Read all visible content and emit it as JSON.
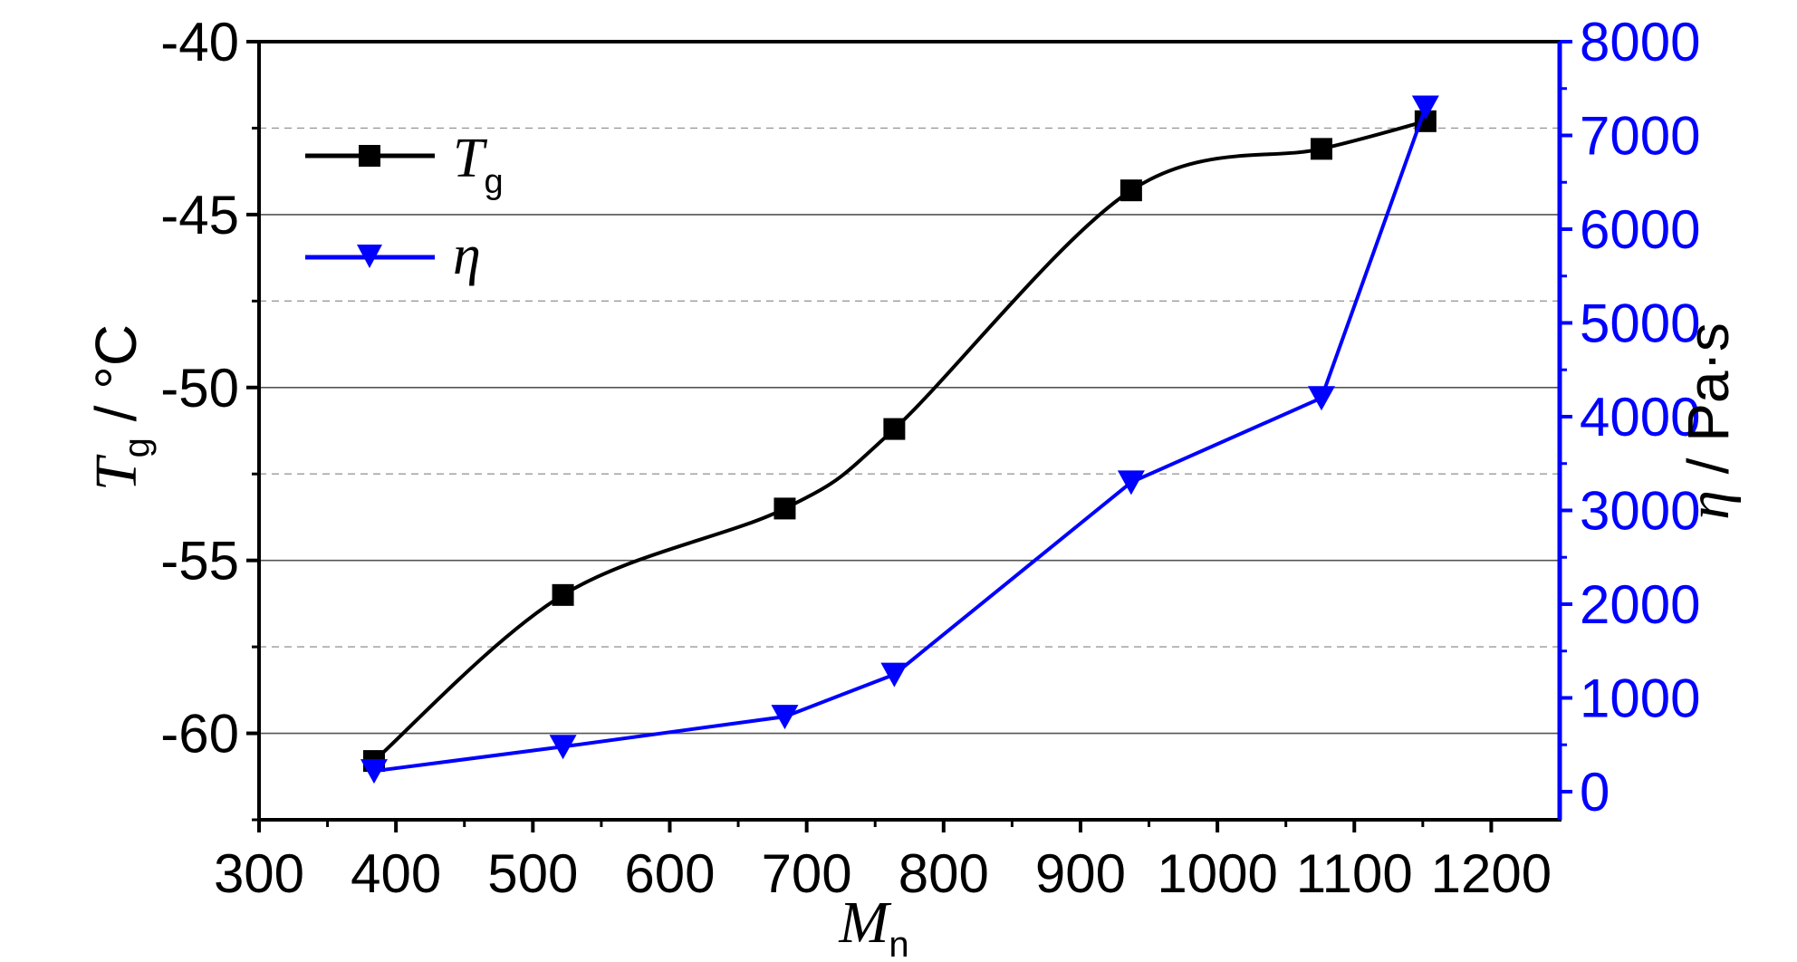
{
  "chart_data": {
    "type": "line",
    "x_axis": {
      "label_main": "M",
      "label_sub": "n",
      "range": [
        300,
        1250
      ],
      "ticks": [
        300,
        400,
        500,
        600,
        700,
        800,
        900,
        1000,
        1100,
        1200
      ]
    },
    "y_left": {
      "label_main": "T",
      "label_sub": "g",
      "label_unit": " / °C",
      "range": [
        -62.5,
        -40
      ],
      "ticks": [
        -60,
        -55,
        -50,
        -45,
        -40
      ]
    },
    "y_right": {
      "label_symbol": "η",
      "label_unit": " / Pa·s",
      "range": [
        -300,
        8000
      ],
      "ticks": [
        0,
        1000,
        2000,
        3000,
        4000,
        5000,
        6000,
        7000,
        8000
      ],
      "color": "#0000ff"
    },
    "grid": {
      "solid_at_left": [
        -60,
        -55,
        -50,
        -45
      ],
      "dashed_at_left": [
        -57.5,
        -52.5,
        -47.5,
        -42.5
      ]
    },
    "series": [
      {
        "name": "T",
        "name_sub": "g",
        "axis": "left",
        "color": "#000000",
        "marker": "square",
        "x": [
          384,
          522,
          684,
          764,
          937,
          1076,
          1152
        ],
        "y": [
          -60.8,
          -56.0,
          -53.5,
          -51.2,
          -44.3,
          -43.1,
          -42.3
        ]
      },
      {
        "name": "η",
        "axis": "right",
        "color": "#0000ff",
        "marker": "triangle-down",
        "x": [
          384,
          522,
          684,
          764,
          937,
          1076,
          1152
        ],
        "y": [
          220,
          480,
          800,
          1250,
          3300,
          4200,
          7300
        ]
      }
    ],
    "legend_position": "top-left"
  }
}
